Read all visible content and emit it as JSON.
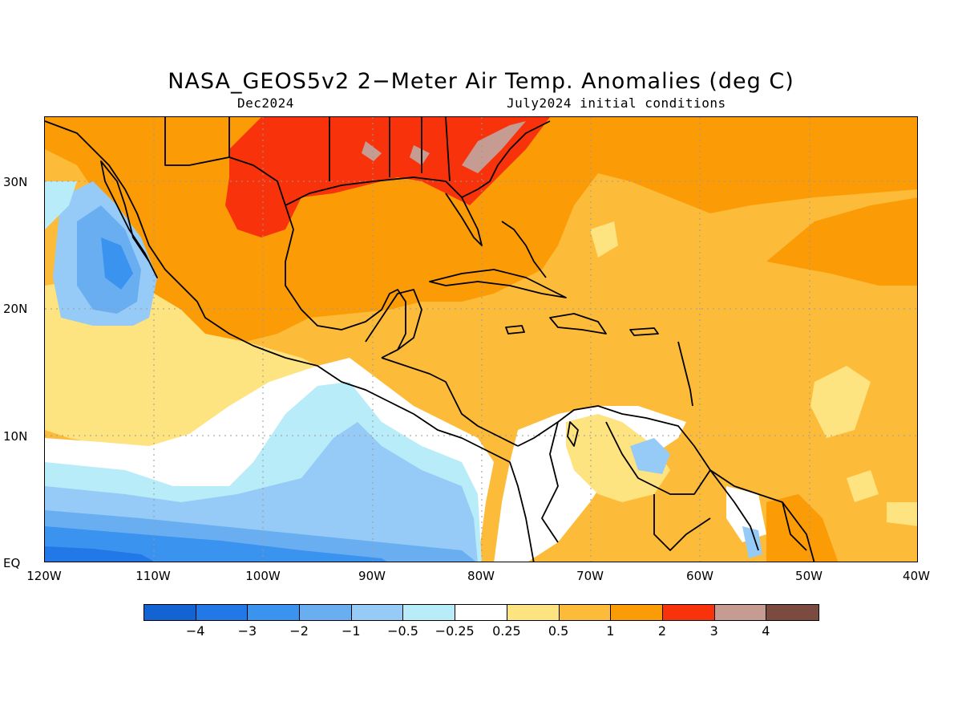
{
  "title": "NASA_GEOS5v2 2−Meter Air Temp. Anomalies (deg C)",
  "subtitle_left": "Dec2024",
  "subtitle_right": "July2024 initial conditions",
  "y_ticks": [
    "30N",
    "20N",
    "10N",
    "EQ"
  ],
  "x_ticks": [
    "120W",
    "110W",
    "100W",
    "90W",
    "80W",
    "70W",
    "60W",
    "50W",
    "40W"
  ],
  "legend": {
    "colors": [
      "#1463d2",
      "#2278e6",
      "#3b93f0",
      "#6aaef2",
      "#95cbf6",
      "#b8ecf8",
      "#ffffff",
      "#fee480",
      "#fdbb3a",
      "#fb9b06",
      "#f8320a",
      "#c69b92",
      "#7a4b3e"
    ],
    "labels": [
      "−4",
      "−3",
      "−2",
      "−1",
      "−0.5",
      "−0.25",
      "0.25",
      "0.5",
      "1",
      "2",
      "3",
      "4"
    ]
  },
  "chart_data": {
    "type": "map",
    "variable": "2-Meter Air Temp. Anomalies",
    "units": "deg C",
    "lon_range": [
      "120W",
      "40W"
    ],
    "lat_range": [
      "EQ",
      "35N"
    ],
    "contour_levels": [
      -4,
      -3,
      -2,
      -1,
      -0.5,
      -0.25,
      0.25,
      0.5,
      1,
      2,
      3,
      4
    ]
  }
}
